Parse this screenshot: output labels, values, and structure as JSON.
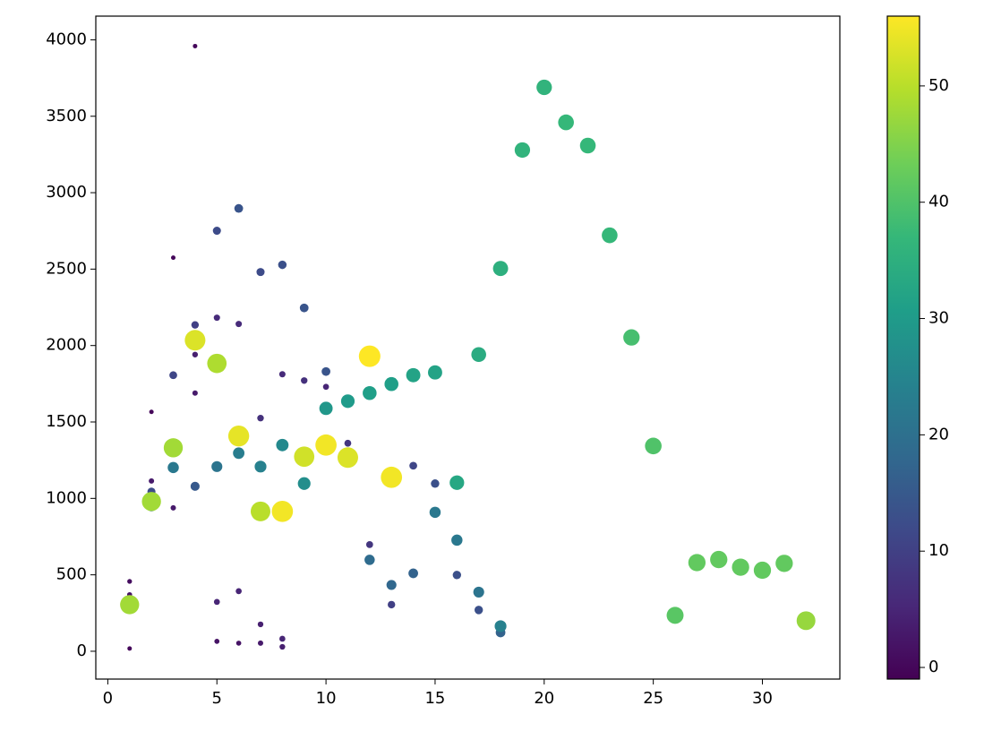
{
  "chart_data": {
    "type": "scatter",
    "colormap": "viridis",
    "x": [
      1,
      1,
      1,
      1,
      2,
      2,
      2,
      2,
      2,
      3,
      3,
      3,
      3,
      3,
      4,
      4,
      4,
      4,
      4,
      4,
      5,
      5,
      5,
      5,
      5,
      5,
      6,
      6,
      6,
      6,
      6,
      6,
      7,
      7,
      7,
      7,
      7,
      7,
      8,
      8,
      8,
      8,
      8,
      8,
      9,
      9,
      9,
      9,
      10,
      10,
      10,
      10,
      11,
      11,
      11,
      12,
      12,
      12,
      12,
      13,
      13,
      13,
      13,
      14,
      14,
      14,
      15,
      15,
      15,
      16,
      16,
      16,
      17,
      17,
      17,
      18,
      18,
      18,
      19,
      20,
      21,
      22,
      23,
      24,
      25,
      26,
      27,
      28,
      29,
      30,
      31,
      32
    ],
    "y": [
      18,
      457,
      370,
      305,
      1566,
      1114,
      1044,
      950,
      980,
      2575,
      1806,
      1202,
      1331,
      938,
      3959,
      2135,
      1941,
      2035,
      1689,
      1079,
      2751,
      2182,
      1883,
      1208,
      323,
      65,
      2897,
      2141,
      1408,
      1296,
      393,
      53,
      2481,
      1525,
      1208,
      915,
      176,
      53,
      2528,
      1812,
      1349,
      915,
      82,
      29,
      2246,
      1771,
      1273,
      1097,
      1830,
      1730,
      1589,
      1349,
      1636,
      1361,
      1267,
      1930,
      1689,
      698,
      598,
      1748,
      1138,
      434,
      305,
      1806,
      1214,
      510,
      1824,
      1097,
      909,
      1103,
      727,
      499,
      1941,
      387,
      270,
      2504,
      123,
      164,
      3279,
      3689,
      3460,
      3308,
      2721,
      2053,
      1343,
      235,
      580,
      600,
      550,
      530,
      575,
      200
    ],
    "c": [
      0,
      1,
      2,
      48,
      0,
      3,
      12,
      20,
      48,
      0,
      11,
      22,
      48,
      3,
      0,
      10,
      4,
      53,
      3,
      15,
      12,
      6,
      49,
      21,
      5,
      2,
      14,
      6,
      54,
      23,
      5,
      2,
      12,
      7,
      24,
      50,
      4,
      3,
      13,
      6,
      26,
      55,
      5,
      4,
      14,
      7,
      52,
      27,
      14,
      5,
      29,
      55,
      30,
      8,
      53,
      56,
      31,
      8,
      19,
      31,
      55,
      18,
      10,
      32,
      11,
      17,
      32,
      13,
      22,
      33,
      22,
      13,
      34,
      21,
      13,
      35,
      17,
      24,
      36,
      36,
      37,
      37,
      37,
      39,
      40,
      41,
      42,
      42,
      42,
      42,
      42,
      47
    ],
    "xlim": [
      -0.55,
      33.55
    ],
    "xticks": [
      0,
      5,
      10,
      15,
      20,
      25,
      30
    ],
    "ylim": [
      -182,
      4155
    ],
    "yticks": [
      0,
      500,
      1000,
      1500,
      2000,
      2500,
      3000,
      3500,
      4000
    ],
    "clim": [
      -1,
      56
    ],
    "cticks": [
      0,
      10,
      20,
      30,
      40,
      50
    ]
  }
}
